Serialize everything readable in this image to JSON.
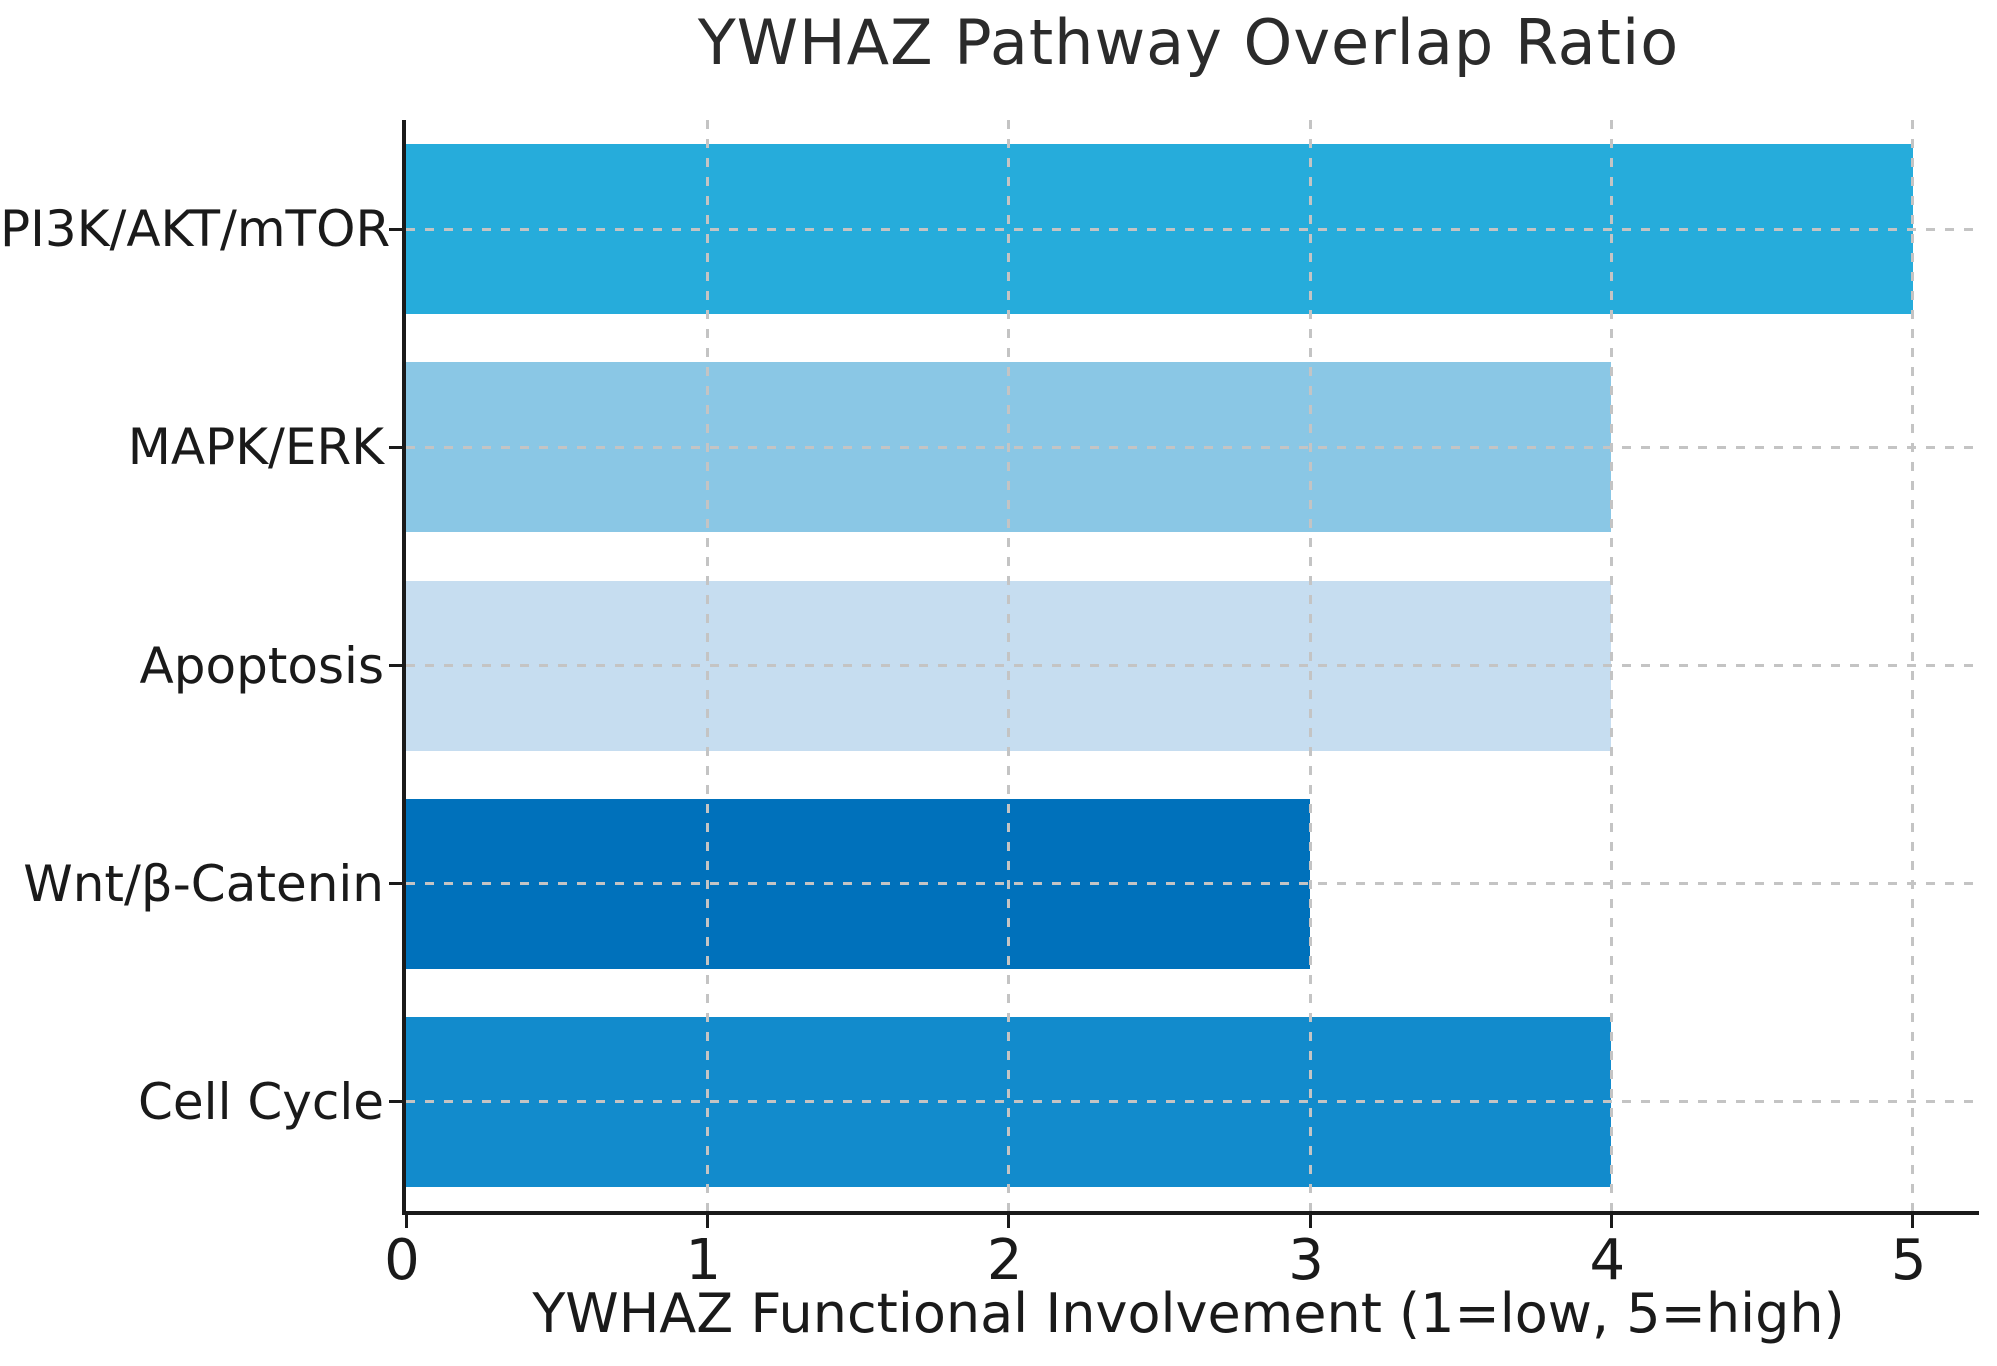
{
  "chart_data": {
    "type": "bar",
    "orientation": "horizontal",
    "title": "YWHAZ Pathway Overlap Ratio",
    "xlabel": "YWHAZ Functional Involvement (1=low, 5=high)",
    "categories": [
      "PI3K/AKT/mTOR",
      "MAPK/ERK",
      "Apoptosis",
      "Wnt/β-Catenin",
      "Cell Cycle"
    ],
    "values": [
      5,
      4,
      4,
      3,
      4
    ],
    "bar_colors": [
      "#26ACDB",
      "#8AC7E5",
      "#C6DDF0",
      "#0071BB",
      "#128BCC"
    ],
    "xticks": [
      "0",
      "1",
      "2",
      "3",
      "4",
      "5"
    ],
    "xlim": [
      0,
      5.22
    ],
    "ylim_categories": "top-to-bottom",
    "grid": "dashed, drawn over bars",
    "grid_color": "#c4c4c4",
    "axis_color": "#1a1a1a",
    "background": "#ffffff",
    "legend": "none"
  }
}
